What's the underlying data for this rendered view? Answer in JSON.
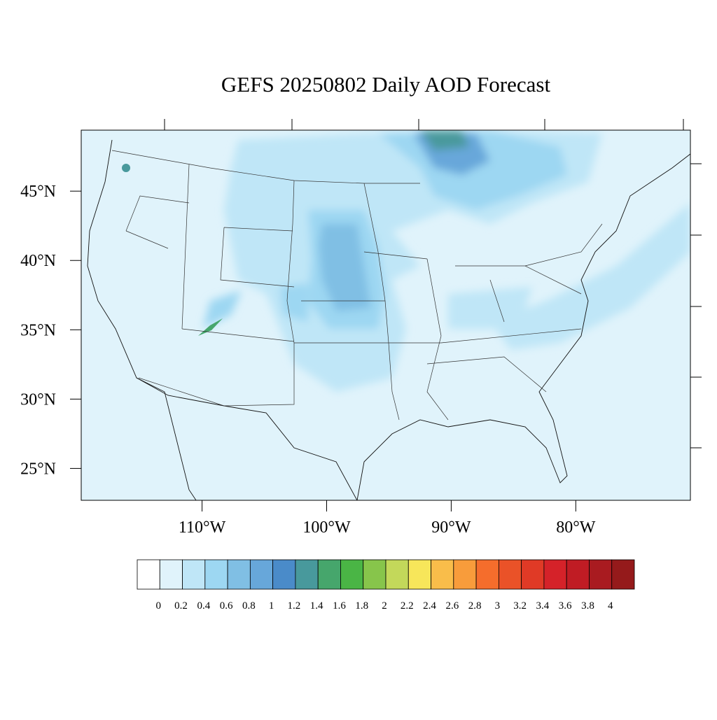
{
  "title": "GEFS 20250802 Daily AOD Forecast",
  "map": {
    "xlim": [
      -119.7,
      -70.8
    ],
    "ylim": [
      22.7,
      49.4
    ],
    "xticks": [
      {
        "value": -110,
        "label": "110°W"
      },
      {
        "value": -100,
        "label": "100°W"
      },
      {
        "value": -90,
        "label": "90°W"
      },
      {
        "value": -80,
        "label": "80°W"
      }
    ],
    "yticks": [
      {
        "value": 25,
        "label": "25°N"
      },
      {
        "value": 30,
        "label": "30°N"
      },
      {
        "value": 35,
        "label": "35°N"
      },
      {
        "value": 40,
        "label": "40°N"
      },
      {
        "value": 45,
        "label": "45°N"
      }
    ]
  },
  "colorbar": {
    "levels": [
      0,
      0.2,
      0.4,
      0.6,
      0.8,
      1,
      1.2,
      1.4,
      1.6,
      1.8,
      2,
      2.2,
      2.4,
      2.6,
      2.8,
      3,
      3.2,
      3.4,
      3.6,
      3.8,
      4
    ],
    "colors": [
      "#ffffff",
      "#e0f3fb",
      "#bfe6f7",
      "#9dd7f2",
      "#80bfe4",
      "#67a7da",
      "#4a8bc9",
      "#48999c",
      "#46a66c",
      "#4ab545",
      "#87c54b",
      "#c3d85a",
      "#f7e65a",
      "#f9bd4a",
      "#f89c3b",
      "#f56d2c",
      "#ea5228",
      "#e03a26",
      "#d52229",
      "#c01c24",
      "#a91b20",
      "#951a1b"
    ]
  }
}
